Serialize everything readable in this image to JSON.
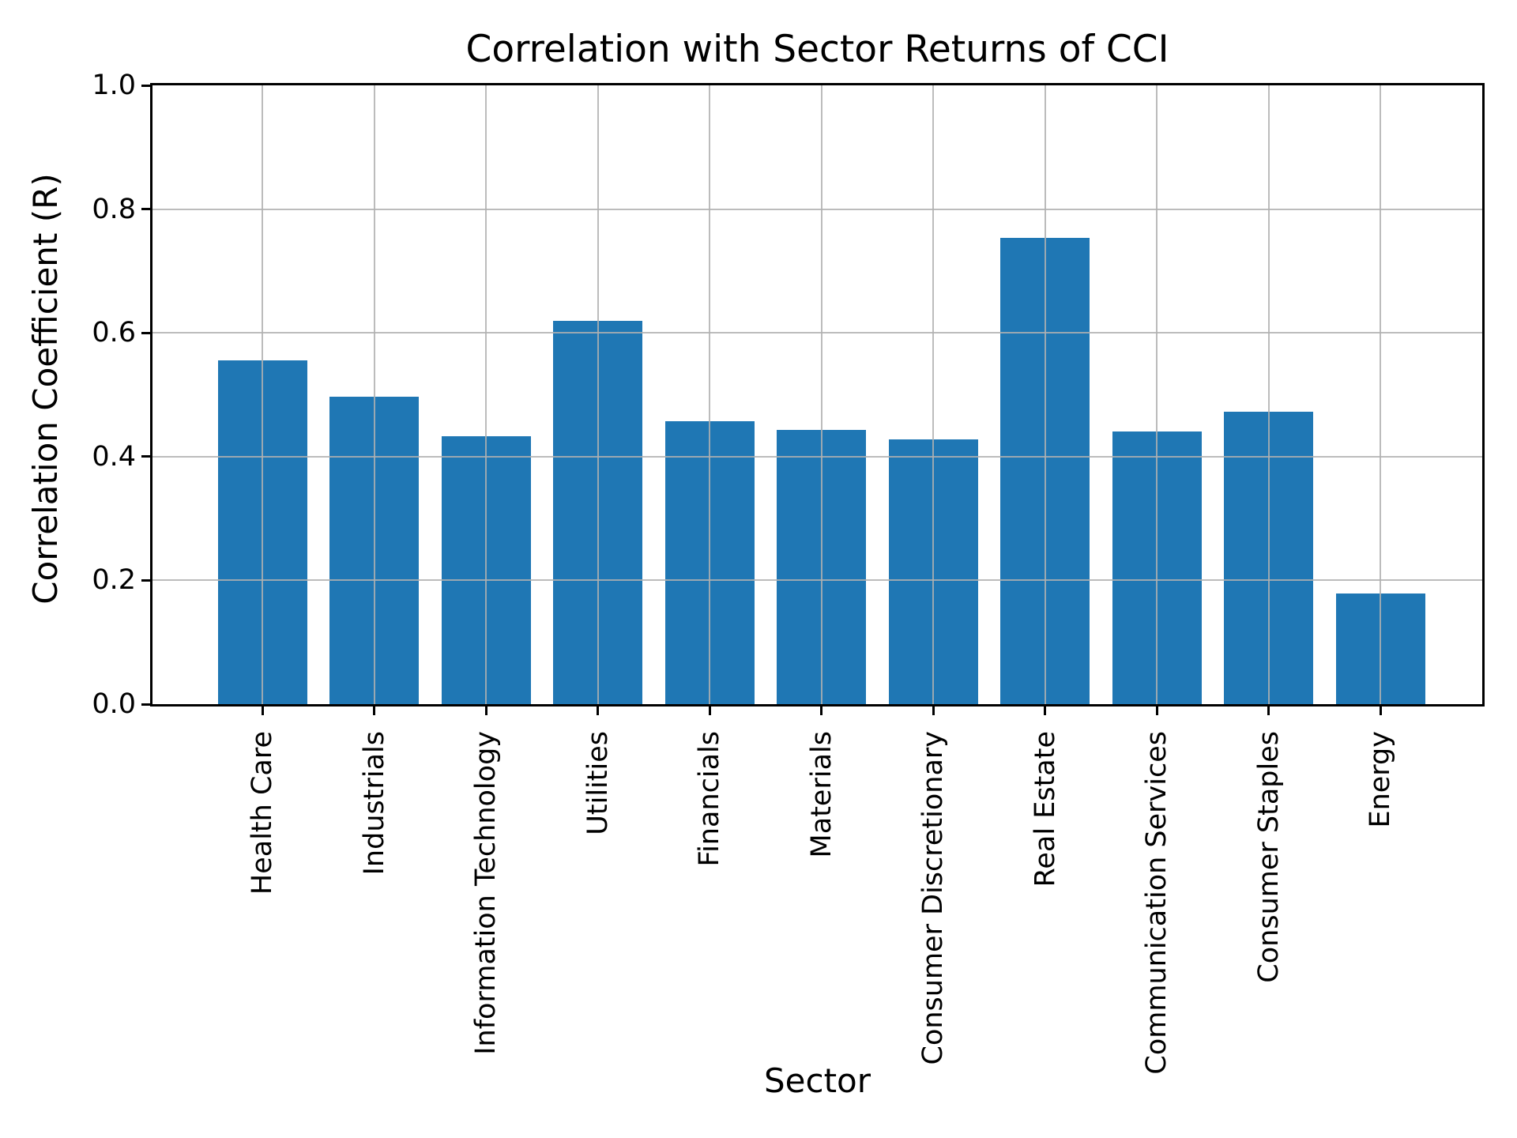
{
  "chart_data": {
    "type": "bar",
    "title": "Correlation with Sector Returns of CCI",
    "xlabel": "Sector",
    "ylabel": "Correlation Coefficient (R)",
    "categories": [
      "Health Care",
      "Industrials",
      "Information Technology",
      "Utilities",
      "Financials",
      "Materials",
      "Consumer Discretionary",
      "Real Estate",
      "Communication Services",
      "Consumer Staples",
      "Energy"
    ],
    "values": [
      0.555,
      0.497,
      0.433,
      0.62,
      0.457,
      0.443,
      0.428,
      0.753,
      0.441,
      0.472,
      0.179
    ],
    "ylim": [
      0.0,
      1.0
    ],
    "yticks": [
      0.0,
      0.2,
      0.4,
      0.6,
      0.8,
      1.0
    ],
    "ytick_labels": [
      "0.0",
      "0.2",
      "0.4",
      "0.6",
      "0.8",
      "1.0"
    ],
    "grid": true,
    "legend": "none",
    "bar_color": "#1f77b4",
    "grid_color": "#b0b0b0",
    "axis_color": "#000000",
    "text_color": "#000000",
    "background_color": "#ffffff"
  }
}
